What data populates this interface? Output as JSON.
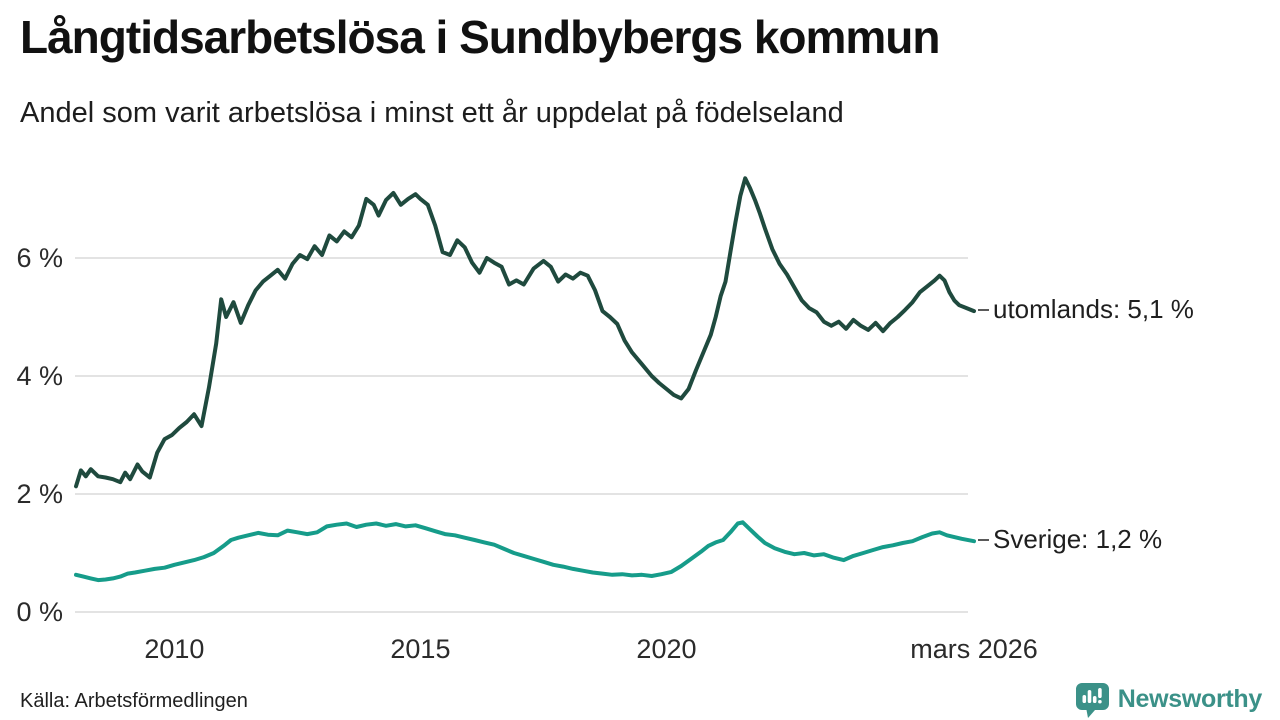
{
  "header": {
    "title": "Långtidsarbetslösa i Sundbybergs kommun",
    "subtitle": "Andel som varit arbetslösa i minst ett år uppdelat på födelseland"
  },
  "footer": {
    "source": "Källa: Arbetsförmedlingen",
    "brand": "Newsworthy"
  },
  "colors": {
    "utomlands_line": "#1f4a3e",
    "sverige_line": "#169c8a",
    "grid": "#e3e3e3",
    "axis_text": "#2b2b2b",
    "label_text": "#1f1f1f",
    "brand_teal": "#3b9188"
  },
  "chart_data": {
    "type": "line",
    "title": "Långtidsarbetslösa i Sundbybergs kommun",
    "subtitle": "Andel som varit arbetslösa i minst ett år uppdelat på födelseland",
    "xlabel": "",
    "ylabel": "",
    "grid": "horizontal",
    "legend_position": "end-of-line",
    "x_axis": {
      "range": [
        2008,
        2026.25
      ],
      "ticks": [
        {
          "x": 2010,
          "label": "2010"
        },
        {
          "x": 2015,
          "label": "2015"
        },
        {
          "x": 2020,
          "label": "2020"
        },
        {
          "x": 2026.25,
          "label": "mars 2026"
        }
      ]
    },
    "y_axis": {
      "range": [
        0,
        7.66
      ],
      "unit": "%",
      "ticks": [
        {
          "v": 0,
          "label": "0 %"
        },
        {
          "v": 2,
          "label": "2 %"
        },
        {
          "v": 4,
          "label": "4 %"
        },
        {
          "v": 6,
          "label": "6 %"
        }
      ]
    },
    "series": [
      {
        "name": "utomlands",
        "color": "#1f4a3e",
        "last_value": 5.1,
        "end_label": "utomlands: 5,1 %",
        "points": [
          [
            2008.0,
            2.13
          ],
          [
            2008.1,
            2.4
          ],
          [
            2008.2,
            2.3
          ],
          [
            2008.3,
            2.42
          ],
          [
            2008.45,
            2.3
          ],
          [
            2008.6,
            2.28
          ],
          [
            2008.75,
            2.25
          ],
          [
            2008.9,
            2.2
          ],
          [
            2009.0,
            2.36
          ],
          [
            2009.1,
            2.25
          ],
          [
            2009.25,
            2.5
          ],
          [
            2009.35,
            2.38
          ],
          [
            2009.5,
            2.28
          ],
          [
            2009.65,
            2.7
          ],
          [
            2009.8,
            2.93
          ],
          [
            2009.95,
            3.0
          ],
          [
            2010.1,
            3.12
          ],
          [
            2010.25,
            3.22
          ],
          [
            2010.4,
            3.35
          ],
          [
            2010.55,
            3.15
          ],
          [
            2010.7,
            3.8
          ],
          [
            2010.85,
            4.55
          ],
          [
            2010.95,
            5.3
          ],
          [
            2011.05,
            5.0
          ],
          [
            2011.2,
            5.25
          ],
          [
            2011.35,
            4.9
          ],
          [
            2011.5,
            5.2
          ],
          [
            2011.65,
            5.45
          ],
          [
            2011.8,
            5.6
          ],
          [
            2011.95,
            5.7
          ],
          [
            2012.1,
            5.8
          ],
          [
            2012.25,
            5.65
          ],
          [
            2012.4,
            5.9
          ],
          [
            2012.55,
            6.05
          ],
          [
            2012.7,
            5.98
          ],
          [
            2012.85,
            6.2
          ],
          [
            2013.0,
            6.05
          ],
          [
            2013.15,
            6.38
          ],
          [
            2013.3,
            6.28
          ],
          [
            2013.45,
            6.45
          ],
          [
            2013.6,
            6.35
          ],
          [
            2013.75,
            6.55
          ],
          [
            2013.9,
            7.0
          ],
          [
            2014.05,
            6.9
          ],
          [
            2014.15,
            6.72
          ],
          [
            2014.3,
            6.98
          ],
          [
            2014.45,
            7.1
          ],
          [
            2014.6,
            6.9
          ],
          [
            2014.75,
            7.0
          ],
          [
            2014.9,
            7.08
          ],
          [
            2015.0,
            7.0
          ],
          [
            2015.15,
            6.9
          ],
          [
            2015.3,
            6.55
          ],
          [
            2015.45,
            6.1
          ],
          [
            2015.6,
            6.05
          ],
          [
            2015.75,
            6.3
          ],
          [
            2015.9,
            6.18
          ],
          [
            2016.05,
            5.92
          ],
          [
            2016.2,
            5.75
          ],
          [
            2016.35,
            6.0
          ],
          [
            2016.5,
            5.92
          ],
          [
            2016.65,
            5.85
          ],
          [
            2016.8,
            5.55
          ],
          [
            2016.95,
            5.62
          ],
          [
            2017.1,
            5.55
          ],
          [
            2017.3,
            5.82
          ],
          [
            2017.5,
            5.95
          ],
          [
            2017.65,
            5.85
          ],
          [
            2017.8,
            5.6
          ],
          [
            2017.95,
            5.72
          ],
          [
            2018.1,
            5.65
          ],
          [
            2018.25,
            5.75
          ],
          [
            2018.4,
            5.7
          ],
          [
            2018.55,
            5.45
          ],
          [
            2018.7,
            5.1
          ],
          [
            2018.85,
            5.0
          ],
          [
            2019.0,
            4.88
          ],
          [
            2019.15,
            4.6
          ],
          [
            2019.3,
            4.4
          ],
          [
            2019.5,
            4.2
          ],
          [
            2019.7,
            4.0
          ],
          [
            2019.85,
            3.88
          ],
          [
            2020.0,
            3.78
          ],
          [
            2020.15,
            3.68
          ],
          [
            2020.3,
            3.62
          ],
          [
            2020.45,
            3.78
          ],
          [
            2020.6,
            4.1
          ],
          [
            2020.75,
            4.4
          ],
          [
            2020.9,
            4.7
          ],
          [
            2021.0,
            5.0
          ],
          [
            2021.1,
            5.35
          ],
          [
            2021.2,
            5.6
          ],
          [
            2021.3,
            6.1
          ],
          [
            2021.4,
            6.6
          ],
          [
            2021.5,
            7.05
          ],
          [
            2021.6,
            7.35
          ],
          [
            2021.7,
            7.18
          ],
          [
            2021.8,
            6.98
          ],
          [
            2021.9,
            6.75
          ],
          [
            2022.0,
            6.5
          ],
          [
            2022.15,
            6.15
          ],
          [
            2022.3,
            5.9
          ],
          [
            2022.45,
            5.72
          ],
          [
            2022.6,
            5.5
          ],
          [
            2022.75,
            5.28
          ],
          [
            2022.9,
            5.15
          ],
          [
            2023.05,
            5.08
          ],
          [
            2023.2,
            4.92
          ],
          [
            2023.35,
            4.85
          ],
          [
            2023.5,
            4.92
          ],
          [
            2023.65,
            4.8
          ],
          [
            2023.8,
            4.95
          ],
          [
            2023.95,
            4.85
          ],
          [
            2024.1,
            4.78
          ],
          [
            2024.25,
            4.9
          ],
          [
            2024.4,
            4.76
          ],
          [
            2024.55,
            4.9
          ],
          [
            2024.7,
            5.0
          ],
          [
            2024.85,
            5.12
          ],
          [
            2025.0,
            5.25
          ],
          [
            2025.15,
            5.42
          ],
          [
            2025.3,
            5.52
          ],
          [
            2025.45,
            5.62
          ],
          [
            2025.55,
            5.7
          ],
          [
            2025.65,
            5.62
          ],
          [
            2025.75,
            5.42
          ],
          [
            2025.85,
            5.28
          ],
          [
            2025.95,
            5.2
          ],
          [
            2026.1,
            5.15
          ],
          [
            2026.25,
            5.1
          ]
        ]
      },
      {
        "name": "Sverige",
        "color": "#169c8a",
        "last_value": 1.2,
        "end_label": "Sverige: 1,2 %",
        "points": [
          [
            2008.0,
            0.63
          ],
          [
            2008.15,
            0.6
          ],
          [
            2008.3,
            0.57
          ],
          [
            2008.45,
            0.54
          ],
          [
            2008.6,
            0.55
          ],
          [
            2008.75,
            0.57
          ],
          [
            2008.9,
            0.6
          ],
          [
            2009.05,
            0.65
          ],
          [
            2009.2,
            0.67
          ],
          [
            2009.4,
            0.7
          ],
          [
            2009.6,
            0.73
          ],
          [
            2009.8,
            0.75
          ],
          [
            2010.0,
            0.8
          ],
          [
            2010.2,
            0.84
          ],
          [
            2010.4,
            0.88
          ],
          [
            2010.6,
            0.93
          ],
          [
            2010.8,
            1.0
          ],
          [
            2011.0,
            1.12
          ],
          [
            2011.15,
            1.22
          ],
          [
            2011.3,
            1.26
          ],
          [
            2011.5,
            1.3
          ],
          [
            2011.7,
            1.34
          ],
          [
            2011.9,
            1.31
          ],
          [
            2012.1,
            1.3
          ],
          [
            2012.3,
            1.38
          ],
          [
            2012.5,
            1.35
          ],
          [
            2012.7,
            1.32
          ],
          [
            2012.9,
            1.35
          ],
          [
            2013.1,
            1.45
          ],
          [
            2013.3,
            1.48
          ],
          [
            2013.5,
            1.5
          ],
          [
            2013.7,
            1.44
          ],
          [
            2013.9,
            1.48
          ],
          [
            2014.1,
            1.5
          ],
          [
            2014.3,
            1.46
          ],
          [
            2014.5,
            1.49
          ],
          [
            2014.7,
            1.45
          ],
          [
            2014.9,
            1.47
          ],
          [
            2015.1,
            1.42
          ],
          [
            2015.3,
            1.37
          ],
          [
            2015.5,
            1.32
          ],
          [
            2015.7,
            1.3
          ],
          [
            2015.9,
            1.26
          ],
          [
            2016.1,
            1.22
          ],
          [
            2016.3,
            1.18
          ],
          [
            2016.5,
            1.14
          ],
          [
            2016.7,
            1.07
          ],
          [
            2016.9,
            1.0
          ],
          [
            2017.1,
            0.95
          ],
          [
            2017.3,
            0.9
          ],
          [
            2017.5,
            0.85
          ],
          [
            2017.7,
            0.8
          ],
          [
            2017.9,
            0.77
          ],
          [
            2018.1,
            0.73
          ],
          [
            2018.3,
            0.7
          ],
          [
            2018.5,
            0.67
          ],
          [
            2018.7,
            0.65
          ],
          [
            2018.9,
            0.63
          ],
          [
            2019.1,
            0.64
          ],
          [
            2019.3,
            0.62
          ],
          [
            2019.5,
            0.63
          ],
          [
            2019.7,
            0.61
          ],
          [
            2019.9,
            0.64
          ],
          [
            2020.1,
            0.68
          ],
          [
            2020.3,
            0.78
          ],
          [
            2020.5,
            0.9
          ],
          [
            2020.7,
            1.02
          ],
          [
            2020.85,
            1.12
          ],
          [
            2021.0,
            1.18
          ],
          [
            2021.15,
            1.22
          ],
          [
            2021.3,
            1.35
          ],
          [
            2021.45,
            1.5
          ],
          [
            2021.55,
            1.52
          ],
          [
            2021.7,
            1.4
          ],
          [
            2021.85,
            1.28
          ],
          [
            2022.0,
            1.17
          ],
          [
            2022.2,
            1.08
          ],
          [
            2022.4,
            1.02
          ],
          [
            2022.6,
            0.98
          ],
          [
            2022.8,
            1.0
          ],
          [
            2023.0,
            0.96
          ],
          [
            2023.2,
            0.98
          ],
          [
            2023.4,
            0.92
          ],
          [
            2023.6,
            0.88
          ],
          [
            2023.8,
            0.95
          ],
          [
            2024.0,
            1.0
          ],
          [
            2024.2,
            1.05
          ],
          [
            2024.4,
            1.1
          ],
          [
            2024.6,
            1.13
          ],
          [
            2024.8,
            1.17
          ],
          [
            2025.0,
            1.2
          ],
          [
            2025.2,
            1.27
          ],
          [
            2025.4,
            1.33
          ],
          [
            2025.55,
            1.35
          ],
          [
            2025.7,
            1.3
          ],
          [
            2025.85,
            1.27
          ],
          [
            2026.0,
            1.24
          ],
          [
            2026.25,
            1.2
          ]
        ]
      }
    ]
  }
}
